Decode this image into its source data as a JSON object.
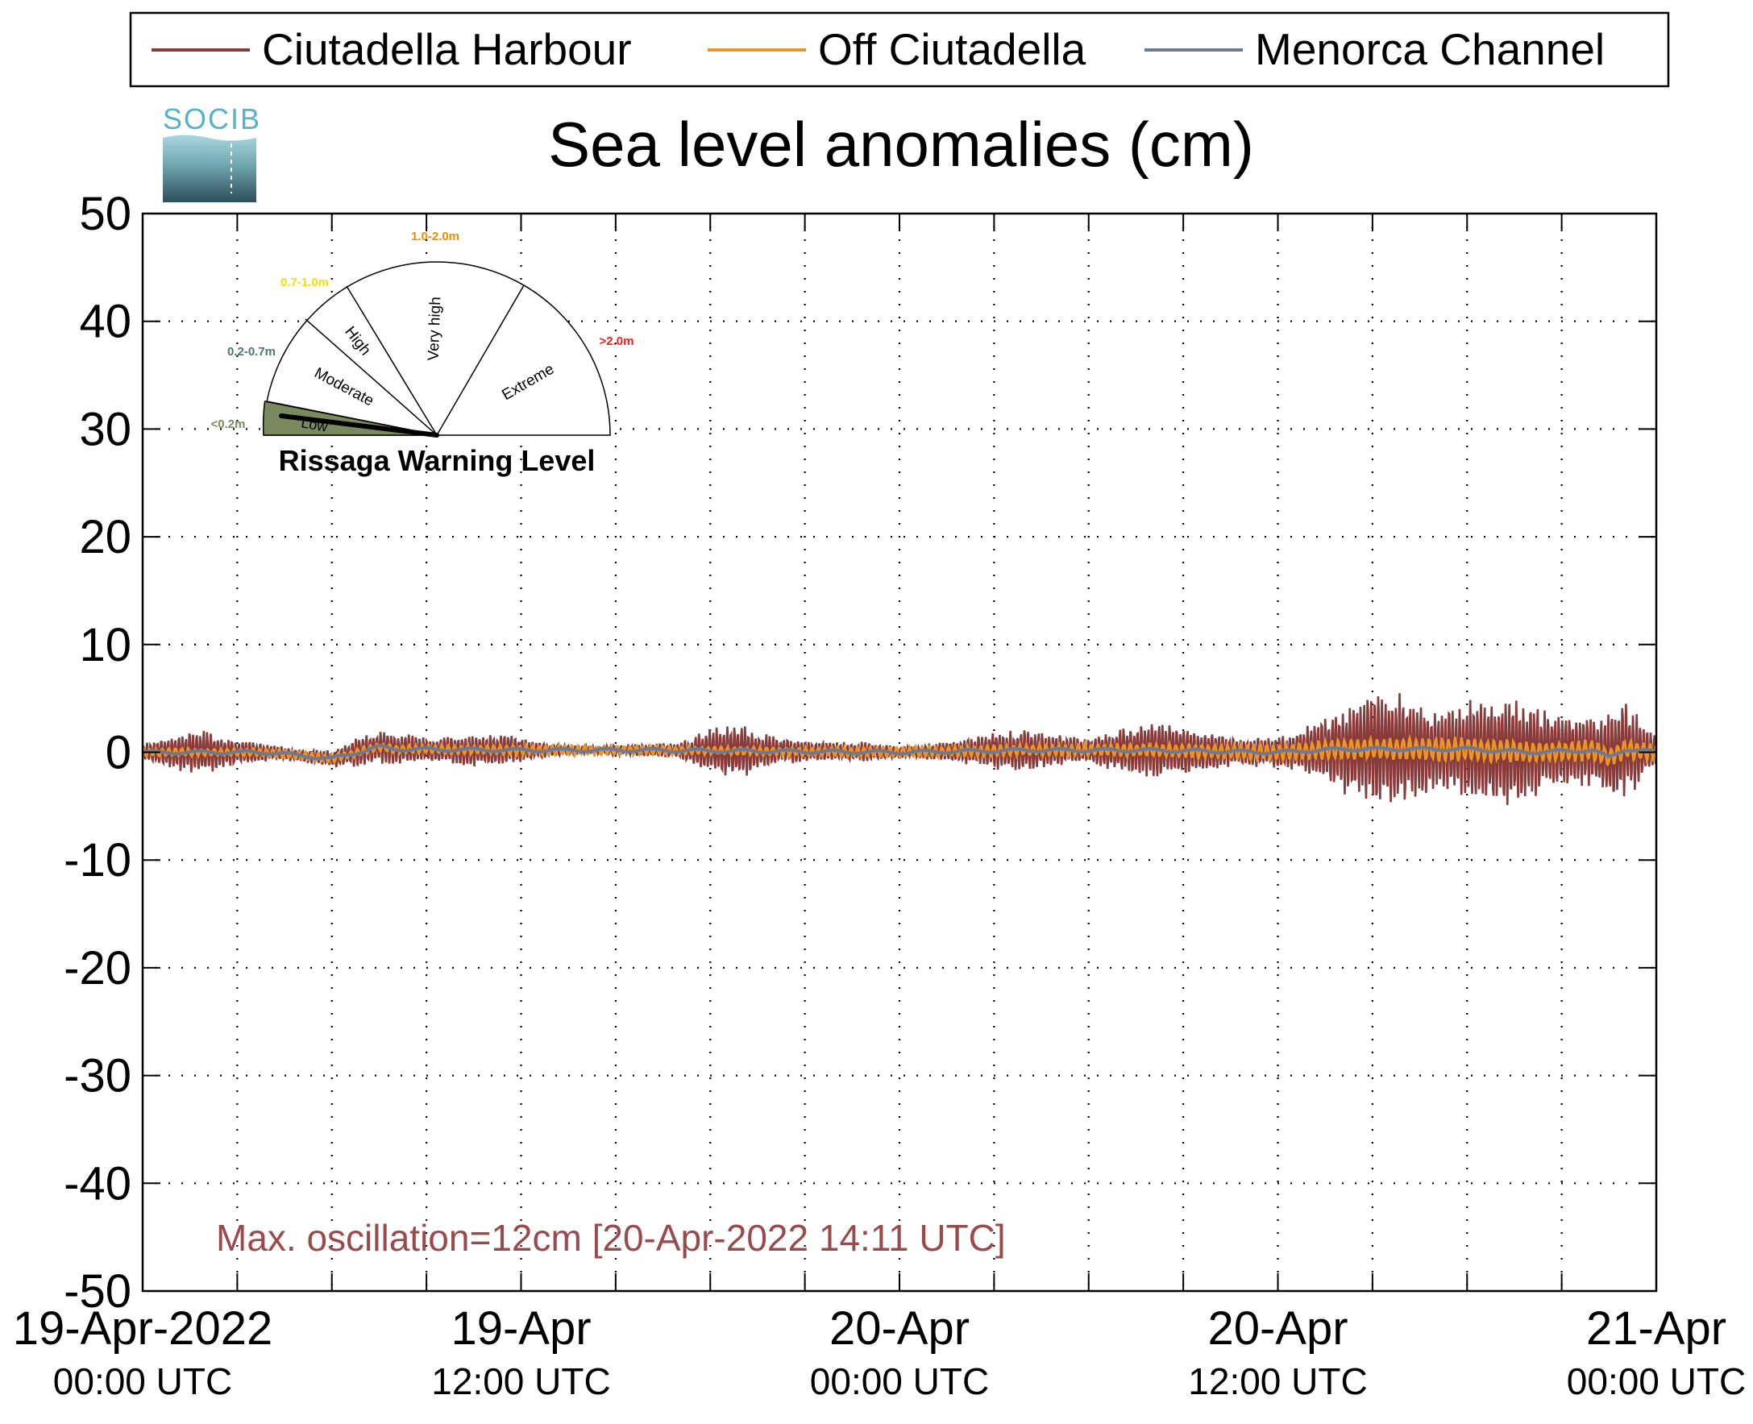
{
  "legend": {
    "items": [
      {
        "label": "Ciutadella Harbour",
        "color": "#8b3a3a"
      },
      {
        "label": "Off Ciutadella",
        "color": "#e8962a"
      },
      {
        "label": "Menorca Channel",
        "color": "#6e7a94"
      }
    ]
  },
  "logo": {
    "text": "SOCIB"
  },
  "title": "Sea level anomalies (cm)",
  "gauge": {
    "title": "Rissaga Warning Level",
    "current_level": "Low",
    "sectors": [
      {
        "name": "Low",
        "range": "<0.2m",
        "color": "#7a8a5e"
      },
      {
        "name": "Moderate",
        "range": "0.2-0.7m",
        "color": "#4e7370"
      },
      {
        "name": "High",
        "range": "0.7-1.0m",
        "color": "#f2e200"
      },
      {
        "name": "Very high",
        "range": "1.0-2.0m",
        "color": "#f28c00"
      },
      {
        "name": "Extreme",
        "range": ">2.0m",
        "color": "#ff1a1a"
      }
    ]
  },
  "annotation": {
    "text": "Max. oscillation=12cm [20-Apr-2022 14:11 UTC]",
    "color": "#9a4a4a"
  },
  "chart_data": {
    "type": "line",
    "title": "Sea level anomalies (cm)",
    "ylim": [
      -50,
      50
    ],
    "yticks": [
      -50,
      -40,
      -30,
      -20,
      -10,
      0,
      10,
      20,
      30,
      40,
      50
    ],
    "xlim_hours": [
      0,
      48
    ],
    "x_unit": "hours since 19-Apr-2022 00:00 UTC",
    "grid": true,
    "legend_position": "top",
    "xtick_labels": [
      {
        "hour": 0,
        "line1": "19-Apr-2022",
        "line2": "00:00 UTC"
      },
      {
        "hour": 12,
        "line1": "19-Apr",
        "line2": "12:00 UTC"
      },
      {
        "hour": 24,
        "line1": "20-Apr",
        "line2": "00:00 UTC"
      },
      {
        "hour": 36,
        "line1": "20-Apr",
        "line2": "12:00 UTC"
      },
      {
        "hour": 48,
        "line1": "21-Apr",
        "line2": "00:00 UTC"
      }
    ],
    "series": [
      {
        "name": "Ciutadella Harbour",
        "color": "#8b3a3a",
        "envelope_hours": [
          0,
          1,
          2,
          3,
          4,
          5,
          6,
          7,
          8,
          9,
          10,
          11,
          12,
          13,
          14,
          15,
          16,
          17,
          18,
          19,
          20,
          21,
          22,
          23,
          24,
          25,
          26,
          27,
          28,
          29,
          30,
          31,
          32,
          33,
          34,
          35,
          36,
          37,
          38,
          39,
          40,
          41,
          42,
          43,
          44,
          45,
          46,
          47,
          48
        ],
        "envelope_amplitude_cm": [
          0.8,
          1.8,
          2.2,
          1.2,
          0.8,
          0.6,
          0.8,
          1.6,
          1.6,
          1.2,
          1.4,
          1.7,
          1.2,
          0.6,
          0.4,
          0.5,
          0.6,
          0.7,
          2.2,
          2.6,
          1.4,
          1.0,
          0.9,
          1.0,
          0.6,
          0.8,
          1.2,
          1.8,
          2.0,
          1.6,
          1.2,
          2.2,
          2.8,
          2.6,
          1.8,
          1.4,
          1.6,
          2.4,
          4.2,
          5.8,
          5.2,
          3.8,
          4.6,
          5.4,
          4.4,
          3.6,
          3.4,
          4.8,
          1.4
        ]
      },
      {
        "name": "Off Ciutadella",
        "color": "#e8962a",
        "envelope_hours": [
          0,
          6,
          12,
          18,
          24,
          30,
          36,
          38,
          40,
          42,
          44,
          46,
          48
        ],
        "envelope_amplitude_cm": [
          0.4,
          0.4,
          0.5,
          0.4,
          0.5,
          0.6,
          0.8,
          1.0,
          1.1,
          1.2,
          1.0,
          1.0,
          0.9
        ]
      },
      {
        "name": "Menorca Channel",
        "color": "#6e7a94",
        "baseline_hours": [
          0,
          4,
          6,
          7.5,
          8,
          12,
          16,
          20,
          24,
          28,
          32,
          36,
          38,
          42,
          44,
          46,
          46.5,
          47,
          48
        ],
        "baseline_cm": [
          0.0,
          0.0,
          -0.6,
          0.5,
          0.3,
          0.2,
          0.2,
          0.1,
          0.0,
          0.2,
          0.2,
          0.0,
          0.3,
          0.3,
          0.0,
          0.2,
          -0.5,
          0.3,
          0.0
        ]
      }
    ]
  }
}
